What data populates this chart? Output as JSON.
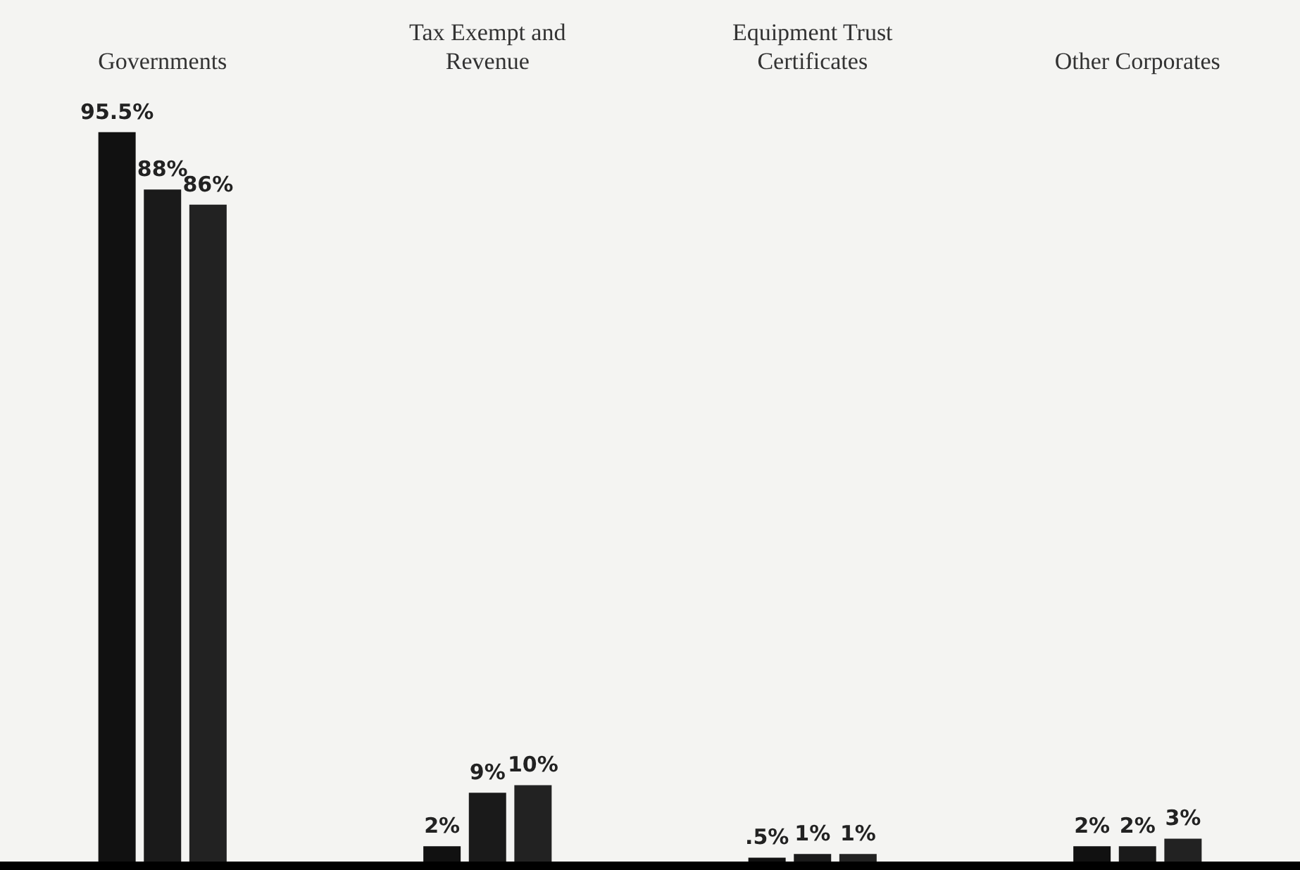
{
  "chart_data": {
    "type": "bar",
    "categories": [
      "Governments",
      "Tax Exempt and Revenue",
      "Equipment Trust Certificates",
      "Other Corporates"
    ],
    "series": [
      {
        "color": "#111111",
        "values": [
          95.5,
          2,
          0.5,
          2
        ],
        "value_labels": [
          "95.5%",
          "2%",
          ".5%",
          "2%"
        ]
      },
      {
        "color": "#1a1a1a",
        "values": [
          88,
          9,
          1,
          2
        ],
        "value_labels": [
          "88%",
          "9%",
          "1%",
          "2%"
        ]
      },
      {
        "color": "#222222",
        "values": [
          86,
          10,
          1,
          3
        ],
        "value_labels": [
          "86%",
          "10%",
          "1%",
          "3%"
        ]
      }
    ],
    "grid": false,
    "legend": false
  }
}
